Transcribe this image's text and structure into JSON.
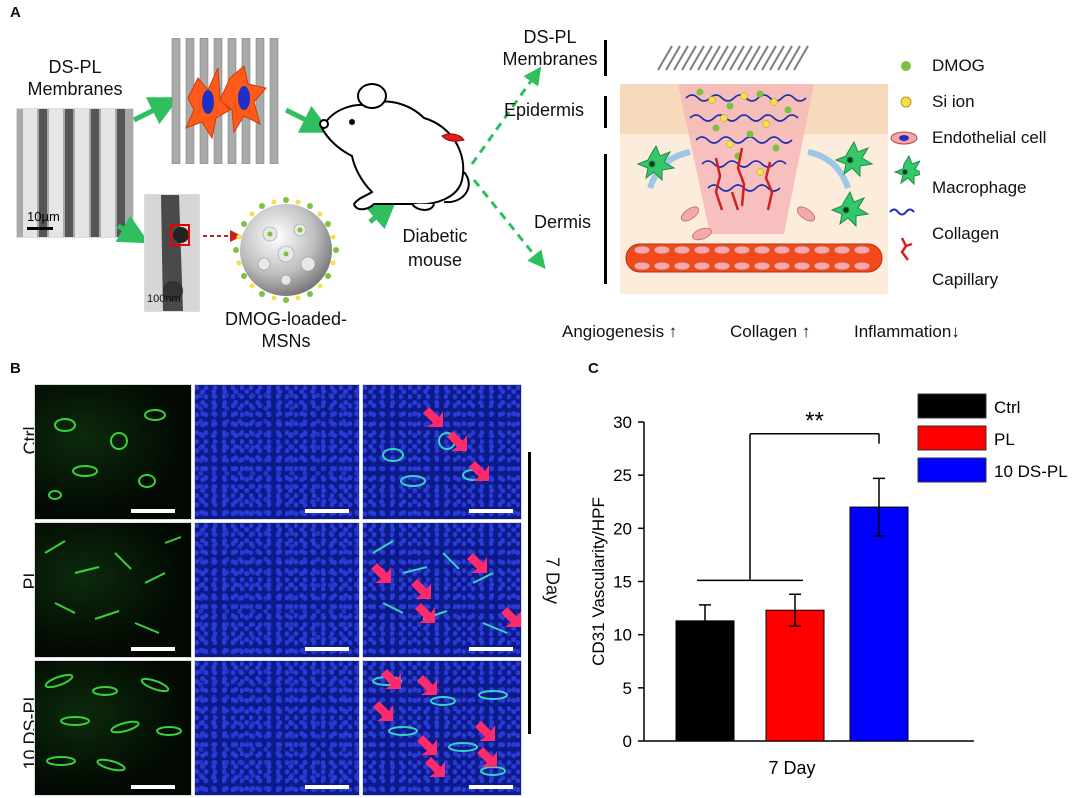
{
  "panel_a": {
    "label": "A",
    "membranes_label": "DS-PL\nMembranes",
    "sem_scale": "10µm",
    "tem_scale": "100nm",
    "msn_label": "DMOG-loaded-\nMSNs",
    "mouse_label": "Diabetic\nmouse",
    "layer_membranes": "DS-PL\nMembranes",
    "layer_epidermis": "Epidermis",
    "layer_dermis": "Dermis",
    "legend": [
      {
        "label": "DMOG",
        "icon": "green-dot"
      },
      {
        "label": "Si ion",
        "icon": "yellow-dot"
      },
      {
        "label": "Endothelial cell",
        "icon": "endothelial-cell"
      },
      {
        "label": "Macrophage",
        "icon": "macrophage"
      },
      {
        "label": "Collagen",
        "icon": "collagen-wave"
      },
      {
        "label": "Capillary",
        "icon": "capillary"
      }
    ],
    "outcomes": [
      {
        "label": "Angiogenesis",
        "arrow": "up"
      },
      {
        "label": "Collagen",
        "arrow": "up"
      },
      {
        "label": "Inflammation",
        "arrow": "down"
      }
    ]
  },
  "panel_b": {
    "label": "B",
    "rows": [
      "Ctrl",
      "PL",
      "10 DS-PL"
    ],
    "time_label": "7 Day"
  },
  "panel_c": {
    "label": "C"
  },
  "chart_data": {
    "type": "bar",
    "categories": [
      "7 Day"
    ],
    "series": [
      {
        "name": "Ctrl",
        "values": [
          11.3
        ],
        "error": [
          1.5
        ],
        "color": "#000000"
      },
      {
        "name": "PL",
        "values": [
          12.3
        ],
        "error": [
          1.5
        ],
        "color": "#ff0000"
      },
      {
        "name": "10 DS-PL",
        "values": [
          22.0
        ],
        "error": [
          2.7
        ],
        "color": "#0000ff"
      }
    ],
    "ylabel": "CD31 Vascularity/HPF",
    "xlabel": "7 Day",
    "ylim": [
      0,
      30
    ],
    "yticks": [
      0,
      5,
      10,
      15,
      20,
      25,
      30
    ],
    "annotation": "**",
    "legend_position": "top-right",
    "grid": false
  }
}
